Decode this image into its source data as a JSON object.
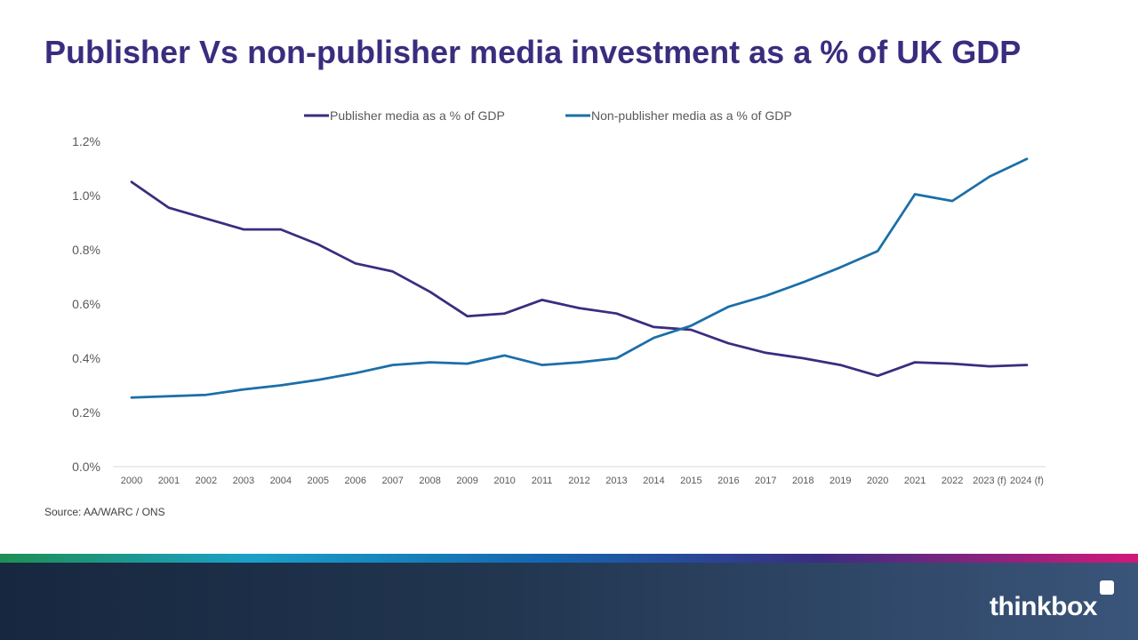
{
  "slide": {
    "title": "Publisher Vs non-publisher media investment as a % of UK GDP",
    "source": "Source: AA/WARC / ONS",
    "brand": "thinkbox"
  },
  "colors": {
    "title": "#3a2d7f",
    "publisher": "#3a2d7f",
    "non_publisher": "#1b6fa8"
  },
  "chart_data": {
    "type": "line",
    "title": "",
    "xlabel": "",
    "ylabel": "",
    "ylim": [
      0,
      1.2
    ],
    "yticks": [
      "0.0%",
      "0.2%",
      "0.4%",
      "0.6%",
      "0.8%",
      "1.0%",
      "1.2%"
    ],
    "grid": false,
    "legend_position": "top",
    "categories": [
      "2000",
      "2001",
      "2002",
      "2003",
      "2004",
      "2005",
      "2006",
      "2007",
      "2008",
      "2009",
      "2010",
      "2011",
      "2012",
      "2013",
      "2014",
      "2015",
      "2016",
      "2017",
      "2018",
      "2019",
      "2020",
      "2021",
      "2022",
      "2023 (f)",
      "2024 (f)"
    ],
    "series": [
      {
        "name": "Publisher media as a % of GDP",
        "color": "#3a2d7f",
        "values": [
          1.05,
          0.955,
          0.915,
          0.875,
          0.875,
          0.82,
          0.75,
          0.72,
          0.645,
          0.555,
          0.565,
          0.615,
          0.585,
          0.565,
          0.515,
          0.505,
          0.455,
          0.42,
          0.4,
          0.375,
          0.335,
          0.385,
          0.38,
          0.37,
          0.375
        ]
      },
      {
        "name": "Non-publisher media as a % of GDP",
        "color": "#1b6fa8",
        "values": [
          0.255,
          0.26,
          0.265,
          0.285,
          0.3,
          0.32,
          0.345,
          0.375,
          0.385,
          0.38,
          0.41,
          0.375,
          0.385,
          0.4,
          0.475,
          0.52,
          0.59,
          0.63,
          0.68,
          0.735,
          0.795,
          1.005,
          0.98,
          1.07,
          1.135
        ]
      }
    ]
  }
}
